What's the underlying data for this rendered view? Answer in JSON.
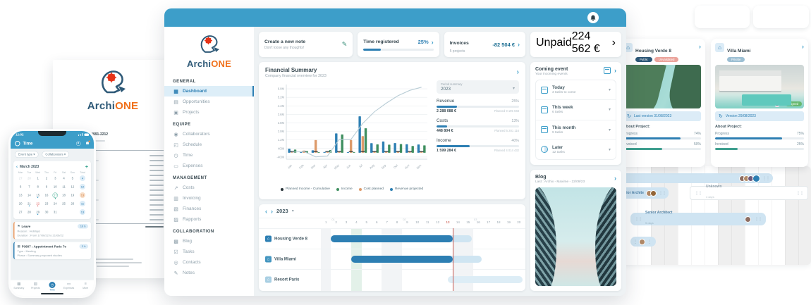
{
  "logo": {
    "primary": "Archi",
    "secondary": "ONE"
  },
  "topbar": {
    "notification_icon": "bell"
  },
  "sidebar": {
    "sections": [
      {
        "title": "GENERAL",
        "items": [
          {
            "name": "dashboard",
            "icon": "▦",
            "label": "Dashboard",
            "active": true
          },
          {
            "name": "opportunities",
            "icon": "▤",
            "label": "Opportunities"
          },
          {
            "name": "projects",
            "icon": "▣",
            "label": "Projects"
          }
        ]
      },
      {
        "title": "EQUIPE",
        "items": [
          {
            "name": "collaborators",
            "icon": "◉",
            "label": "Collaborators"
          },
          {
            "name": "schedule",
            "icon": "◰",
            "label": "Schedule"
          },
          {
            "name": "time",
            "icon": "◷",
            "label": "Time"
          },
          {
            "name": "expenses",
            "icon": "▭",
            "label": "Expenses"
          }
        ]
      },
      {
        "title": "MANAGEMENT",
        "items": [
          {
            "name": "costs",
            "icon": "↗",
            "label": "Costs"
          },
          {
            "name": "invoicing",
            "icon": "▥",
            "label": "Invoicing"
          },
          {
            "name": "finances",
            "icon": "▧",
            "label": "Finances"
          },
          {
            "name": "rapports",
            "icon": "▨",
            "label": "Rapports"
          }
        ]
      },
      {
        "title": "COLLABORATION",
        "items": [
          {
            "name": "blog",
            "icon": "▩",
            "label": "Blog"
          },
          {
            "name": "tasks",
            "icon": "☑",
            "label": "Tasks"
          },
          {
            "name": "contacts",
            "icon": "◎",
            "label": "Contacts"
          },
          {
            "name": "notes",
            "icon": "✎",
            "label": "Notes"
          }
        ]
      }
    ]
  },
  "top_cards": {
    "note": {
      "title": "Create a new note",
      "subtitle": "Don't loose any thoughts!"
    },
    "time": {
      "title": "Time registered",
      "value": "25%",
      "progress": 25
    },
    "invoices": {
      "title": "Invoices",
      "subtitle": "5 projects",
      "value": "-82 504 €"
    },
    "unpaid": {
      "title": "Unpaid",
      "value": "224 562 €",
      "progress": 38
    }
  },
  "financial": {
    "title": "Financial Summary",
    "subtitle": "Company financial overview for 2023",
    "period_label": "Period summary",
    "period_value": "2023",
    "stats": [
      {
        "label": "Revenue",
        "percent": "25%",
        "progress": 25,
        "value": "2 288 088 €",
        "planned": "Planned 9 195 948"
      },
      {
        "label": "Costs",
        "percent": "13%",
        "progress": 13,
        "value": "448 804 €",
        "planned": "Planned 5 281 116"
      },
      {
        "label": "Income",
        "percent": "40%",
        "progress": 40,
        "value": "1 599 284 €",
        "planned": "Planned 4 014 432"
      }
    ]
  },
  "chart_data": {
    "type": "bar+line",
    "title": "Financial Summary",
    "subtitle": "Company financial overview for 2023",
    "x": [
      "Jan",
      "Feb",
      "Mar",
      "Apr",
      "May",
      "Jun",
      "Jul",
      "Aug",
      "Sep",
      "Oct",
      "Nov",
      "Dec"
    ],
    "unit": "k€",
    "ylim": [
      -600,
      6400
    ],
    "yticks": [
      {
        "v": 6000,
        "label": "6.0M"
      },
      {
        "v": 5200,
        "label": "5.2M"
      },
      {
        "v": 4400,
        "label": "4.4M"
      },
      {
        "v": 3600,
        "label": "3.6M"
      },
      {
        "v": 2800,
        "label": "2.8M"
      },
      {
        "v": 2000,
        "label": "2.0M"
      },
      {
        "v": 1200,
        "label": "1.2M"
      },
      {
        "v": 400,
        "label": "400k"
      },
      {
        "v": -400,
        "label": "-400k"
      }
    ],
    "series": [
      {
        "name": "Planned Income - Cumulative",
        "type": "line",
        "color": "#b9cdd6",
        "values": [
          60,
          120,
          -380,
          -300,
          1250,
          1250,
          2750,
          3850,
          4650,
          5350,
          5850,
          6150
        ]
      },
      {
        "name": "Revenue projected",
        "type": "bar",
        "color": "#2d7fb3",
        "values": [
          380,
          70,
          230,
          80,
          1820,
          60,
          3420,
          900,
          1060,
          910,
          800,
          780
        ]
      },
      {
        "name": "Cost planned",
        "type": "bar",
        "color": "#dd9b6b",
        "values": [
          70,
          210,
          1200,
          70,
          80,
          1200,
          1560,
          90,
          80,
          90,
          80,
          90
        ]
      },
      {
        "name": "Income",
        "type": "bar",
        "color": "#3f8f5f",
        "values": [
          300,
          160,
          60,
          260,
          1720,
          70,
          2300,
          790,
          760,
          820,
          640,
          700
        ]
      },
      {
        "name": "Planned Income",
        "type": "marker",
        "color": "#263238",
        "values": [
          120,
          120,
          120,
          120,
          120,
          120,
          120,
          120,
          120,
          120,
          120,
          120
        ]
      }
    ],
    "legend": [
      {
        "label": "Planned Income - Cumulative",
        "color": "#263238"
      },
      {
        "label": "Income",
        "color": "#3f8f5f"
      },
      {
        "label": "Cost planned",
        "color": "#dd9b6b"
      },
      {
        "label": "Revenue projected",
        "color": "#2d7fb3"
      }
    ]
  },
  "gantt": {
    "year": "2023",
    "days": 20,
    "today": 13,
    "green_day": 4,
    "weekend_days": [
      1,
      7,
      8,
      14,
      15
    ],
    "month_markers": [
      {
        "label": "01",
        "day": 2
      },
      {
        "label": "02",
        "day": 9
      },
      {
        "label": "03",
        "day": 16
      }
    ],
    "rows": [
      {
        "label": "Housing Verde 8",
        "icon_color": "#2d7fb3",
        "solid": [
          2,
          13
        ],
        "light": [
          13,
          15
        ]
      },
      {
        "label": "Villa Miami",
        "icon_color": "#4596c0",
        "solid": [
          4,
          13
        ],
        "light": [
          13,
          16
        ]
      },
      {
        "label": "Resort Paris",
        "icon_color": "#a9cfe3",
        "solid": null,
        "light": [
          13.5,
          20
        ]
      }
    ]
  },
  "coming_events": {
    "title": "Coming event",
    "subtitle": "Your incoming events",
    "items": [
      {
        "icon": "calendar",
        "label": "Today",
        "sub": "3 tasks to come"
      },
      {
        "icon": "calendar",
        "label": "This week",
        "sub": "6 tasks"
      },
      {
        "icon": "calendar",
        "label": "This month",
        "sub": "9 tasks"
      },
      {
        "icon": "clock",
        "label": "Later",
        "sub": "12 tasks"
      }
    ]
  },
  "blog": {
    "title": "Blog",
    "subtitle": "Last : Archix - Maxime - 22/09/23"
  },
  "right_panel": {
    "cards": [
      {
        "title": "Housing Verde 8",
        "badges": [
          {
            "label": "Public",
            "style": "navy"
          },
          {
            "label": "Unvalidated",
            "style": "pink"
          }
        ],
        "overlay": "Signed",
        "version": "Last version 31/08/2023",
        "about": "About Project:",
        "stats": [
          {
            "label": "Progress",
            "value": "74%",
            "progress": 74,
            "fill": "f-blue"
          },
          {
            "label": "Invoiced",
            "value": "50%",
            "progress": 50,
            "fill": "f-teal"
          }
        ]
      },
      {
        "title": "Villa Miami",
        "badges": [
          {
            "label": "Private",
            "style": "steel"
          }
        ],
        "overlay": "Signed",
        "version": "Version 29/08/2023",
        "about": "About Project:",
        "stats": [
          {
            "label": "Progress",
            "value": "75%",
            "progress": 75,
            "fill": "f-blue"
          },
          {
            "label": "Invoiced",
            "value": "25%",
            "progress": 25,
            "fill": "f-teal"
          }
        ]
      }
    ],
    "schedule": {
      "rows": [
        {
          "label": "Junior Archite",
          "days": "4 days"
        },
        {
          "label": "Unknown",
          "days": "4 days"
        },
        {
          "label": "Senior Architect",
          "days": "5 days"
        }
      ]
    }
  },
  "phone": {
    "status_time": "12:02",
    "title": "Time",
    "filters": [
      {
        "label": "Event type"
      },
      {
        "label": "Collaborators"
      }
    ],
    "calendar": {
      "month": "March 2023",
      "weekdays": [
        "Mon",
        "Tue",
        "Wed",
        "Thu",
        "Fri",
        "Sat",
        "Sun",
        "Total"
      ],
      "weeks": [
        {
          "days": [
            {
              "d": "27",
              "muted": true
            },
            {
              "d": "28",
              "muted": true
            },
            {
              "d": "1"
            },
            {
              "d": "2"
            },
            {
              "d": "3"
            },
            {
              "d": "4"
            },
            {
              "d": "5"
            }
          ],
          "total": "4",
          "total_style": "blue"
        },
        {
          "days": [
            {
              "d": "6"
            },
            {
              "d": "7"
            },
            {
              "d": "8"
            },
            {
              "d": "9"
            },
            {
              "d": "10"
            },
            {
              "d": "11"
            },
            {
              "d": "12"
            }
          ],
          "total": "12",
          "total_style": "blue"
        },
        {
          "days": [
            {
              "d": "13"
            },
            {
              "d": "14"
            },
            {
              "d": "15",
              "dot": "blue"
            },
            {
              "d": "16"
            },
            {
              "d": "17",
              "ring": true,
              "dot": "green"
            },
            {
              "d": "18"
            },
            {
              "d": "19"
            }
          ],
          "total": "13",
          "total_style": "orange"
        },
        {
          "days": [
            {
              "d": "20"
            },
            {
              "d": "21",
              "dot": "blue"
            },
            {
              "d": "22",
              "red": true,
              "dot": "red"
            },
            {
              "d": "23"
            },
            {
              "d": "24"
            },
            {
              "d": "25"
            },
            {
              "d": "26"
            }
          ],
          "total": "11",
          "total_style": "blue"
        },
        {
          "days": [
            {
              "d": "27"
            },
            {
              "d": "28"
            },
            {
              "d": "29",
              "dot": "blue"
            },
            {
              "d": "30"
            },
            {
              "d": "31"
            },
            {
              "d": "",
              "muted": true
            },
            {
              "d": "",
              "muted": true
            }
          ],
          "total": "13",
          "total_style": "blue"
        }
      ]
    },
    "events": [
      {
        "icon": "⚑",
        "title": "Leave",
        "badge": "10 h",
        "accent": "orange",
        "lines": [
          "Reason : Holidays",
          "Duration : From 17/06/22 to 21/06/22"
        ]
      },
      {
        "icon": "▦",
        "title": "P3607 : Appointment Paris 7e",
        "badge": "2 h",
        "accent": "blue",
        "lines": [
          "Type : Meeting",
          "Phase : Summary proposed studies"
        ]
      }
    ],
    "nav": [
      {
        "label": "Summary",
        "icon": "▦"
      },
      {
        "label": "Projects",
        "icon": "▤"
      },
      {
        "label": "Time",
        "icon": "◷",
        "active": true
      },
      {
        "label": "Expenses",
        "icon": "▭"
      },
      {
        "label": "More",
        "icon": "≡"
      }
    ]
  },
  "invoice_doc": {
    "title": "Invoice N° VX-AB4991-2212",
    "project_label": "Project"
  }
}
